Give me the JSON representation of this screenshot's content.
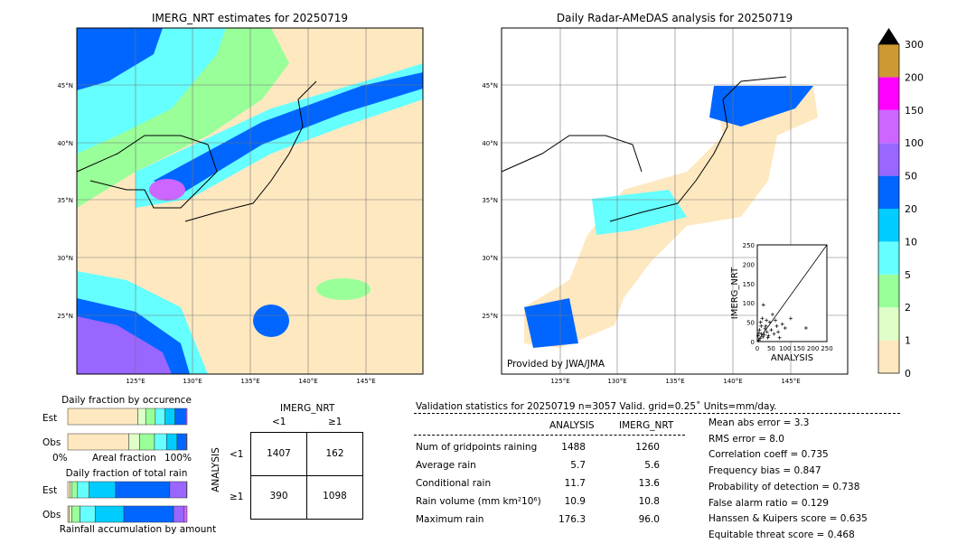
{
  "left_map": {
    "title": "IMERG_NRT estimates for 20250719"
  },
  "right_map": {
    "title": "Daily Radar-AMeDAS analysis for 20250719",
    "credit": "Provided by JWA/JMA"
  },
  "lon_ticks": [
    "125°E",
    "130°E",
    "135°E",
    "140°E",
    "145°E"
  ],
  "lat_ticks": [
    "45°N",
    "40°N",
    "35°N",
    "30°N",
    "25°N"
  ],
  "colorbar": {
    "labels": [
      "0",
      "1",
      "2",
      "5",
      "10",
      "20",
      "50",
      "100",
      "150",
      "200",
      "300"
    ],
    "colors": [
      "#fee8c0",
      "#e0ffc8",
      "#99ff99",
      "#66ffff",
      "#00ccff",
      "#0066ff",
      "#9966ff",
      "#cc66ff",
      "#ff00ff",
      "#cc9933"
    ],
    "extend_color": "#000000"
  },
  "chart_data": [
    {
      "type": "bar",
      "title": "Daily fraction by occurence",
      "xlabel": "Areal fraction",
      "xticks": [
        "0%",
        "100%"
      ],
      "categories": [
        "Est",
        "Obs"
      ],
      "cumulative": {
        "Est": [
          0.587,
          0.653,
          0.734,
          0.815,
          0.899,
          0.987,
          1.0
        ],
        "Obs": [
          0.511,
          0.603,
          0.727,
          0.828,
          0.916,
          0.995,
          1.0
        ]
      }
    },
    {
      "type": "bar",
      "title": "Daily fraction of total rain",
      "xlabel": "Rainfall accumulation by amount",
      "categories": [
        "Est",
        "Obs"
      ],
      "cumulative": {
        "Est": [
          0.018,
          0.036,
          0.082,
          0.179,
          0.401,
          0.855,
          0.995,
          1.0
        ],
        "Obs": [
          0.013,
          0.035,
          0.103,
          0.229,
          0.47,
          0.887,
          0.972,
          1.0
        ]
      }
    },
    {
      "type": "table",
      "title": "Contingency table",
      "col_header": "IMERG_NRT",
      "row_header": "ANALYSIS",
      "cols": [
        "<1",
        "≥1"
      ],
      "rows": [
        "<1",
        "≥1"
      ],
      "values": [
        [
          "1407",
          "162"
        ],
        [
          "390",
          "1098"
        ]
      ]
    },
    {
      "type": "scatter",
      "xlabel": "ANALYSIS",
      "ylabel": "IMERG_NRT",
      "xlim": [
        0,
        250
      ],
      "ylim": [
        0,
        250
      ],
      "ticks": [
        "0",
        "50",
        "100",
        "150",
        "200",
        "250"
      ],
      "points": [
        [
          5,
          3
        ],
        [
          10,
          8
        ],
        [
          15,
          20
        ],
        [
          20,
          12
        ],
        [
          8,
          30
        ],
        [
          25,
          18
        ],
        [
          30,
          40
        ],
        [
          12,
          50
        ],
        [
          18,
          60
        ],
        [
          22,
          95
        ],
        [
          35,
          25
        ],
        [
          40,
          15
        ],
        [
          45,
          50
        ],
        [
          50,
          30
        ],
        [
          60,
          20
        ],
        [
          55,
          70
        ],
        [
          70,
          40
        ],
        [
          80,
          10
        ],
        [
          90,
          45
        ],
        [
          100,
          35
        ],
        [
          120,
          60
        ],
        [
          175,
          35
        ],
        [
          3,
          15
        ],
        [
          6,
          22
        ],
        [
          28,
          33
        ],
        [
          14,
          40
        ],
        [
          33,
          55
        ],
        [
          38,
          10
        ],
        [
          65,
          55
        ],
        [
          75,
          25
        ]
      ]
    }
  ],
  "stats": {
    "header": "Validation statistics for 20250719  n=3057 Valid. grid=0.25˚ Units=mm/day.",
    "col1": "ANALYSIS",
    "col2": "IMERG_NRT",
    "rows": [
      {
        "label": "Num of gridpoints raining",
        "a": "1488",
        "b": "1260"
      },
      {
        "label": "Average rain",
        "a": "5.7",
        "b": "5.6"
      },
      {
        "label": "Conditional rain",
        "a": "11.7",
        "b": "13.6"
      },
      {
        "label": "Rain volume (mm km²10⁶)",
        "a": "10.9",
        "b": "10.8"
      },
      {
        "label": "Maximum rain",
        "a": "176.3",
        "b": "96.0"
      }
    ],
    "scores": [
      "Mean abs error =    3.3",
      "RMS error =    8.0",
      "Correlation coeff =  0.735",
      "Frequency bias =  0.847",
      "Probability of detection =  0.738",
      "False alarm ratio =  0.129",
      "Hanssen & Kuipers score =  0.635",
      "Equitable threat score =  0.468"
    ]
  }
}
